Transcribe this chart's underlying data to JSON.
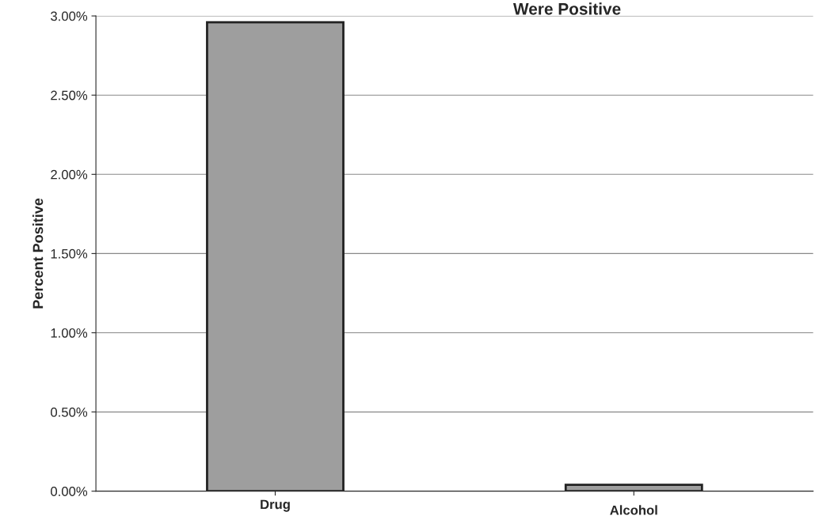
{
  "chart_data": {
    "type": "bar",
    "title": "Were Positive",
    "ylabel": "Percent Positive",
    "categories": [
      "Drug",
      "Alcohol"
    ],
    "values": [
      2.96,
      0.04
    ],
    "color": "#9e9e9e",
    "ylim": [
      0,
      3
    ],
    "yticks": [
      {
        "value": 0,
        "label": "0.00%"
      },
      {
        "value": 0.5,
        "label": "0.50%"
      },
      {
        "value": 1,
        "label": "1.00%"
      },
      {
        "value": 1.5,
        "label": "1.50%"
      },
      {
        "value": 2,
        "label": "2.00%"
      },
      {
        "value": 2.5,
        "label": "2.50%"
      },
      {
        "value": 3,
        "label": "3.00%"
      }
    ],
    "grid": "y",
    "legend": false
  }
}
